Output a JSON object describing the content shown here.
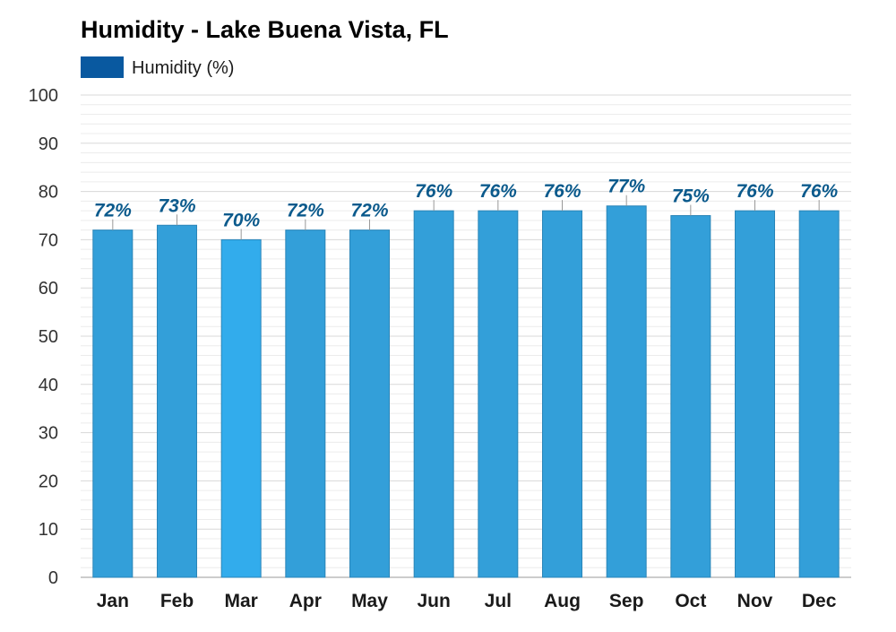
{
  "colors": {
    "bar": "#339fd9",
    "bar_highlight": "#32acec",
    "bar_stroke": "#2a85b8",
    "legend_swatch": "#0959a0",
    "data_label": "#0b5a8c",
    "grid": "#d8d8d8",
    "grid_minor": "#ececec"
  },
  "chart_data": {
    "type": "bar",
    "title": "Humidity - Lake Buena Vista, FL",
    "legend": {
      "placement": "top-left",
      "entries": [
        "Humidity (%)"
      ]
    },
    "categories": [
      "Jan",
      "Feb",
      "Mar",
      "Apr",
      "May",
      "Jun",
      "Jul",
      "Aug",
      "Sep",
      "Oct",
      "Nov",
      "Dec"
    ],
    "series": [
      {
        "name": "Humidity (%)",
        "values": [
          72,
          73,
          70,
          72,
          72,
          76,
          76,
          76,
          77,
          75,
          76,
          76
        ]
      }
    ],
    "data_labels": [
      "72%",
      "73%",
      "70%",
      "72%",
      "72%",
      "76%",
      "76%",
      "76%",
      "77%",
      "75%",
      "76%",
      "76%"
    ],
    "highlight_category": "Mar",
    "ylim": [
      0,
      100
    ],
    "yticks": [
      0,
      10,
      20,
      30,
      40,
      50,
      60,
      70,
      80,
      90,
      100
    ],
    "ytick_labels": [
      "0",
      "10",
      "20",
      "30",
      "40",
      "50",
      "60",
      "70",
      "80",
      "90",
      "100"
    ],
    "grid": true,
    "xlabel": "",
    "ylabel": ""
  }
}
